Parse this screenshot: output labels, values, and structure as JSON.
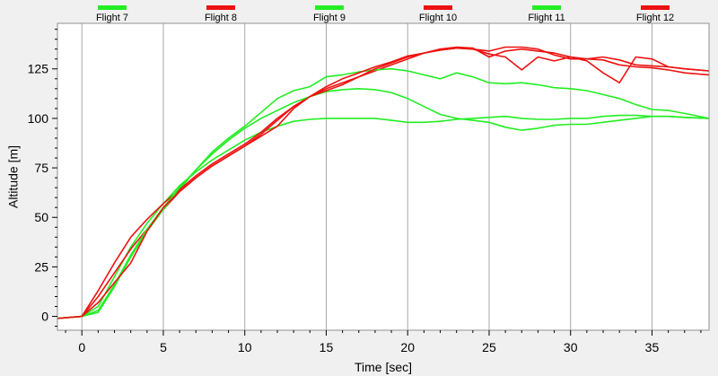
{
  "chart_data": {
    "type": "line",
    "xlabel": "Time [sec]",
    "ylabel": "Altitude [m]",
    "xlim": [
      -1.5,
      38.5
    ],
    "ylim": [
      -7,
      148
    ],
    "xticks": [
      0,
      5,
      10,
      15,
      20,
      25,
      30,
      35
    ],
    "yticks": [
      0,
      25,
      50,
      75,
      100,
      125
    ],
    "xtick_labels": [
      "0",
      "5",
      "10",
      "15",
      "20",
      "25",
      "30",
      "35"
    ],
    "ytick_labels": [
      "0",
      "25",
      "50",
      "75",
      "100",
      "125"
    ],
    "grid": "vertical",
    "legend_position": "top",
    "colors": {
      "green": "#22ee22",
      "red": "#ee1111",
      "background": "#ffffff",
      "frame": "#f0f0f0"
    },
    "series": [
      {
        "name": "Flight 7",
        "color": "#22ee22",
        "x": [
          -1.5,
          0,
          1,
          2,
          3,
          4,
          5,
          6,
          7,
          8,
          9,
          10,
          11,
          12,
          13,
          14,
          15,
          16,
          17,
          18,
          19,
          20,
          21,
          22,
          23,
          24,
          25,
          26,
          27,
          28,
          29,
          30,
          31,
          32,
          33,
          34,
          35,
          36,
          37,
          38.5
        ],
        "y": [
          -1,
          0,
          5,
          20,
          35,
          47,
          57,
          66,
          73,
          79,
          84,
          89,
          93,
          96,
          98.5,
          99.5,
          100,
          100,
          100,
          100,
          99,
          98,
          98,
          98.5,
          99.5,
          100,
          100.5,
          101,
          100,
          99.5,
          99.5,
          100,
          100,
          101,
          101.5,
          101.5,
          101,
          101,
          100.5,
          100
        ]
      },
      {
        "name": "Flight 8",
        "color": "#ee1111",
        "x": [
          -1.5,
          0,
          1,
          2,
          3,
          4,
          5,
          6,
          7,
          8,
          9,
          10,
          11,
          12,
          13,
          14,
          15,
          16,
          17,
          18,
          19,
          20,
          21,
          22,
          23,
          24,
          25,
          26,
          27,
          28,
          29,
          30,
          31,
          32,
          33,
          34,
          35,
          36,
          37,
          38.5
        ],
        "y": [
          -1,
          0,
          10,
          22,
          34,
          44,
          54,
          63,
          70,
          76,
          81,
          86,
          92,
          99,
          106,
          111,
          115,
          118,
          121,
          124,
          127,
          130,
          133,
          135,
          136,
          135.5,
          131,
          134,
          135,
          134,
          133,
          131,
          130,
          129.5,
          127,
          126,
          125.5,
          124.5,
          123,
          122
        ]
      },
      {
        "name": "Flight 9",
        "color": "#22ee22",
        "x": [
          -1.5,
          0,
          1,
          2,
          3,
          4,
          5,
          6,
          7,
          8,
          9,
          10,
          11,
          12,
          13,
          14,
          15,
          16,
          17,
          18,
          19,
          20,
          21,
          22,
          23,
          24,
          25,
          26,
          27,
          28,
          29,
          30,
          31,
          32,
          33,
          34,
          35,
          36,
          37,
          38.5
        ],
        "y": [
          -1,
          0,
          2,
          15,
          30,
          43,
          54,
          64,
          74,
          83,
          90,
          96,
          103,
          110,
          114,
          116,
          121,
          122,
          123.5,
          124.5,
          125,
          124,
          122,
          120,
          123,
          121,
          118,
          117.5,
          118,
          117,
          115.5,
          115,
          114,
          112,
          110,
          107,
          104.5,
          104,
          102.5,
          100
        ]
      },
      {
        "name": "Flight 10",
        "color": "#ee1111",
        "x": [
          -1.5,
          0,
          1,
          2,
          3,
          4,
          5,
          6,
          7,
          8,
          9,
          10,
          11,
          12,
          13,
          14,
          15,
          16,
          17,
          18,
          19,
          20,
          21,
          22,
          23,
          24,
          25,
          26,
          27,
          28,
          29,
          30,
          31,
          32,
          33,
          34,
          35,
          36,
          37,
          38.5
        ],
        "y": [
          -1,
          0,
          13,
          27,
          40,
          49,
          57,
          64,
          71,
          77,
          82,
          87,
          93,
          100,
          106,
          111,
          116,
          120,
          123,
          126,
          128.5,
          131.5,
          133,
          134.5,
          135.5,
          135,
          134,
          136,
          136,
          135,
          132,
          130,
          130,
          131,
          129.5,
          127,
          126.5,
          126,
          125,
          124
        ]
      },
      {
        "name": "Flight 11",
        "color": "#22ee22",
        "x": [
          -1.5,
          0,
          1,
          2,
          3,
          4,
          5,
          6,
          7,
          8,
          9,
          10,
          11,
          12,
          13,
          14,
          15,
          16,
          17,
          18,
          19,
          20,
          21,
          22,
          23,
          24,
          25,
          26,
          27,
          28,
          29,
          30,
          31,
          32,
          33,
          34,
          35,
          36,
          37,
          38.5
        ],
        "y": [
          -1,
          0,
          3,
          16,
          31,
          44,
          55,
          65,
          74,
          82,
          89,
          95,
          100,
          104,
          108,
          111,
          113.5,
          114.5,
          115,
          114.5,
          113,
          110,
          106,
          102,
          100,
          99,
          98,
          95.5,
          94,
          95,
          96.5,
          97,
          97,
          98,
          99,
          100,
          101,
          101,
          100.5,
          100
        ]
      },
      {
        "name": "Flight 12",
        "color": "#ee1111",
        "x": [
          -1.5,
          0,
          1,
          2,
          3,
          4,
          5,
          6,
          7,
          8,
          9,
          10,
          11,
          12,
          13,
          14,
          15,
          16,
          17,
          18,
          19,
          20,
          21,
          22,
          23,
          24,
          25,
          26,
          27,
          28,
          29,
          30,
          31,
          32,
          33,
          34,
          35,
          36,
          37,
          38.5
        ],
        "y": [
          -1,
          0,
          7,
          17,
          27,
          43,
          55,
          63,
          70,
          76,
          81,
          86,
          91,
          96,
          105,
          111,
          114,
          117,
          121,
          125,
          128,
          131,
          133,
          134.5,
          135.5,
          135,
          132.5,
          131,
          124.5,
          131,
          129,
          131,
          129,
          123,
          118,
          131,
          130,
          126,
          125,
          124
        ]
      }
    ]
  }
}
